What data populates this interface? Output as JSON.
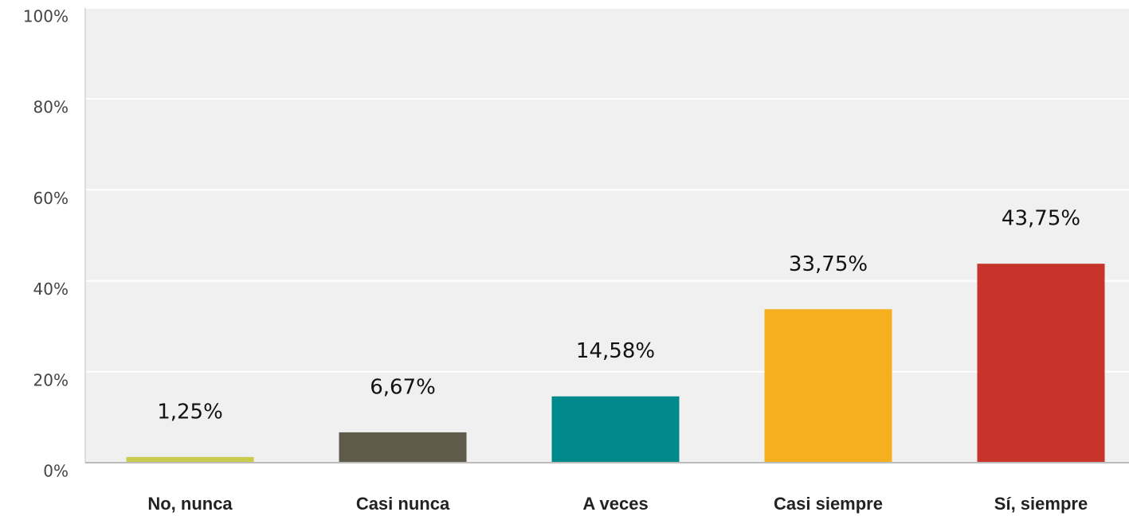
{
  "chart_data": {
    "type": "bar",
    "categories": [
      "No, nunca",
      "Casi nunca",
      "A veces",
      "Casi siempre",
      "Sí, siempre"
    ],
    "values": [
      1.25,
      6.67,
      14.58,
      33.75,
      43.75
    ],
    "value_labels": [
      "1,25%",
      "6,67%",
      "14,58%",
      "33,75%",
      "43,75%"
    ],
    "colors": [
      "#c9cb4c",
      "#5e5b4b",
      "#00898a",
      "#f6b01f",
      "#c6342b"
    ],
    "ylim": [
      0,
      100
    ],
    "yticks": [
      {
        "value": 0,
        "label": "0%"
      },
      {
        "value": 20,
        "label": "20%"
      },
      {
        "value": 40,
        "label": "40%"
      },
      {
        "value": 60,
        "label": "60%"
      },
      {
        "value": 80,
        "label": "80%"
      },
      {
        "value": 100,
        "label": "100%"
      }
    ],
    "grid": true
  }
}
